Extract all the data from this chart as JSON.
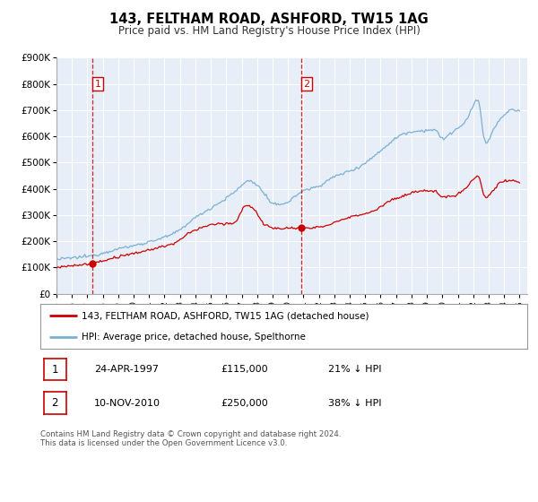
{
  "title": "143, FELTHAM ROAD, ASHFORD, TW15 1AG",
  "subtitle": "Price paid vs. HM Land Registry's House Price Index (HPI)",
  "ylim": [
    0,
    900000
  ],
  "xlim_start": 1995.0,
  "xlim_end": 2025.5,
  "background_color": "#e8eef8",
  "red_line_color": "#cc0000",
  "blue_line_color": "#7ab0d4",
  "marker1_date": 1997.31,
  "marker1_value": 115000,
  "marker2_date": 2010.86,
  "marker2_value": 250000,
  "vline1_x": 1997.31,
  "vline2_x": 2010.86,
  "legend_red_label": "143, FELTHAM ROAD, ASHFORD, TW15 1AG (detached house)",
  "legend_blue_label": "HPI: Average price, detached house, Spelthorne",
  "table_row1": [
    "1",
    "24-APR-1997",
    "£115,000",
    "21% ↓ HPI"
  ],
  "table_row2": [
    "2",
    "10-NOV-2010",
    "£250,000",
    "38% ↓ HPI"
  ],
  "footnote": "Contains HM Land Registry data © Crown copyright and database right 2024.\nThis data is licensed under the Open Government Licence v3.0.",
  "ytick_labels": [
    "£0",
    "£100K",
    "£200K",
    "£300K",
    "£400K",
    "£500K",
    "£600K",
    "£700K",
    "£800K",
    "£900K"
  ],
  "ytick_values": [
    0,
    100000,
    200000,
    300000,
    400000,
    500000,
    600000,
    700000,
    800000,
    900000
  ],
  "xtick_years": [
    1995,
    1996,
    1997,
    1998,
    1999,
    2000,
    2001,
    2002,
    2003,
    2004,
    2005,
    2006,
    2007,
    2008,
    2009,
    2010,
    2011,
    2012,
    2013,
    2014,
    2015,
    2016,
    2017,
    2018,
    2019,
    2020,
    2021,
    2022,
    2023,
    2024,
    2025
  ]
}
